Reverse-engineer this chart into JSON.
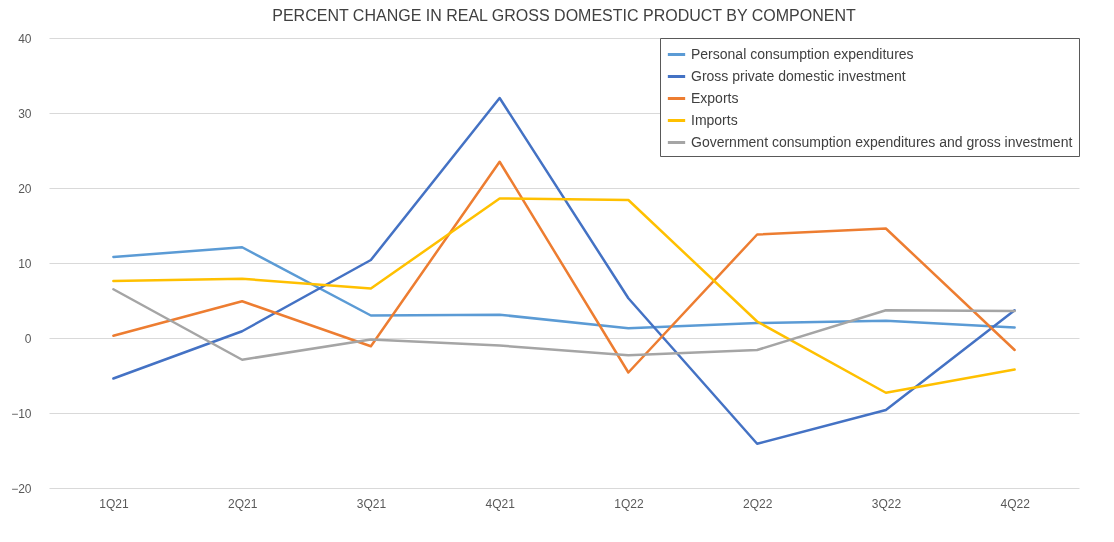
{
  "chart_data": {
    "type": "line",
    "title": "PERCENT CHANGE IN REAL GROSS DOMESTIC PRODUCT BY COMPONENT",
    "categories": [
      "1Q21",
      "2Q21",
      "3Q21",
      "4Q21",
      "1Q22",
      "2Q22",
      "3Q22",
      "4Q22"
    ],
    "series": [
      {
        "name": "Personal consumption expenditures",
        "color": "#5b9bd5",
        "values": [
          10.8,
          12.1,
          3.0,
          3.1,
          1.3,
          2.0,
          2.3,
          1.4
        ]
      },
      {
        "name": "Gross private domestic investment",
        "color": "#4472c4",
        "values": [
          -5.4,
          0.9,
          10.4,
          32.0,
          5.3,
          -14.1,
          -9.6,
          3.7
        ]
      },
      {
        "name": "Exports",
        "color": "#ed7d31",
        "values": [
          0.3,
          4.9,
          -1.1,
          23.5,
          -4.6,
          13.8,
          14.6,
          -1.6
        ]
      },
      {
        "name": "Imports",
        "color": "#ffc000",
        "values": [
          7.6,
          7.9,
          6.6,
          18.6,
          18.4,
          2.2,
          -7.3,
          -4.2
        ]
      },
      {
        "name": "Government consumption expenditures and gross investment",
        "color": "#a5a5a5",
        "values": [
          6.5,
          -2.9,
          -0.2,
          -1.0,
          -2.3,
          -1.6,
          3.7,
          3.6
        ]
      }
    ],
    "ylim": [
      -20,
      40
    ],
    "yticks": [
      -20,
      -10,
      0,
      10,
      20,
      30,
      40
    ],
    "grid": "y",
    "legend": "top right",
    "marker": "none",
    "line_style": "solid"
  }
}
